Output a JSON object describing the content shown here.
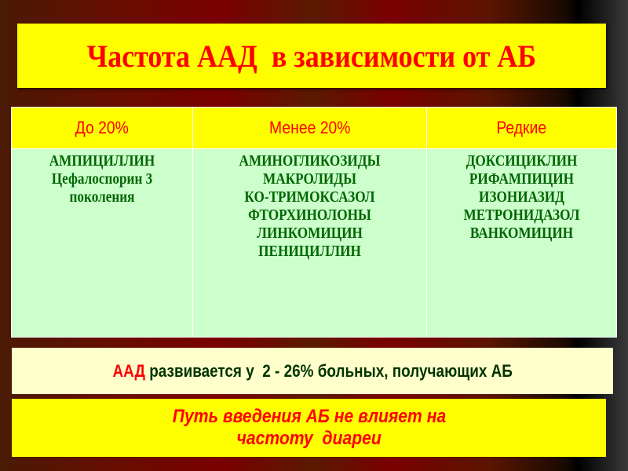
{
  "title": "Частота ААД  в зависимости от АБ",
  "table": {
    "headers": [
      "До 20%",
      "Менее 20%",
      "Редкие"
    ],
    "columns": [
      [
        "АМПИЦИЛЛИН",
        "Цефалоспорин 3",
        "поколения"
      ],
      [
        "АМИНОГЛИКОЗИДЫ",
        "МАКРОЛИДЫ",
        "КО-ТРИМОКСАЗОЛ",
        "ФТОРХИНОЛОНЫ",
        "ЛИНКОМИЦИН",
        "ПЕНИЦИЛЛИН"
      ],
      [
        "ДОКСИЦИКЛИН",
        "РИФАМПИЦИН",
        "ИЗОНИАЗИД",
        "МЕТРОНИДАЗОЛ",
        "ВАНКОМИЦИН"
      ]
    ]
  },
  "note1": {
    "highlight": "ААД",
    "text": " развивается у  2 - 26% больных, получающих АБ"
  },
  "note2": {
    "line1": "Путь введения АБ не влияет на",
    "line2": "частоту  диареи"
  },
  "colors": {
    "title_bg": "#ffff00",
    "title_text": "#ff0000",
    "cell_bg": "#ccffcc",
    "cell_text": "#006600",
    "note_bg": "#ffffcc"
  }
}
